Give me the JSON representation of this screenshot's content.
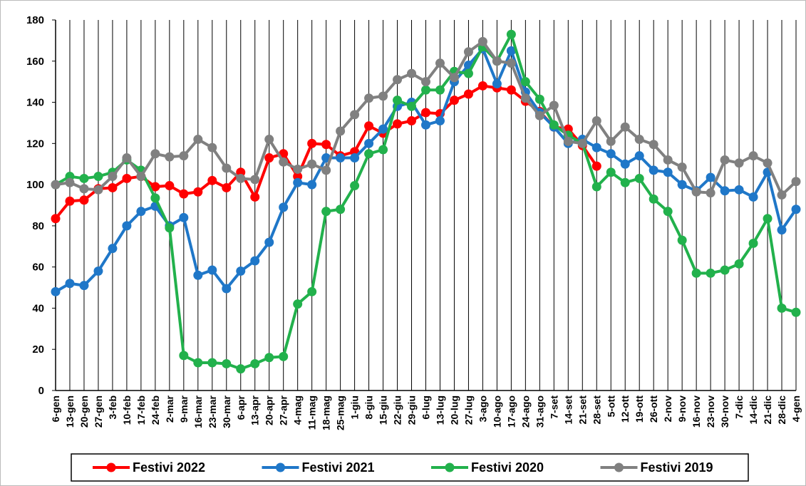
{
  "chart_data": {
    "type": "line",
    "categories": [
      "6-gen",
      "13-gen",
      "20-gen",
      "27-gen",
      "3-feb",
      "10-feb",
      "17-feb",
      "24-feb",
      "2-mar",
      "9-mar",
      "16-mar",
      "23-mar",
      "30-mar",
      "6-apr",
      "13-apr",
      "20-apr",
      "27-apr",
      "4-mag",
      "11-mag",
      "18-mag",
      "25-mag",
      "1-giu",
      "8-giu",
      "15-giu",
      "22-giu",
      "29-giu",
      "6-lug",
      "13-lug",
      "20-lug",
      "27-lug",
      "3-ago",
      "10-ago",
      "17-ago",
      "24-ago",
      "31-ago",
      "7-set",
      "14-set",
      "21-set",
      "28-set",
      "5-ott",
      "12-ott",
      "19-ott",
      "26-ott",
      "2-nov",
      "9-nov",
      "16-nov",
      "23-nov",
      "30-nov",
      "7-dic",
      "14-dic",
      "21-dic",
      "28-dic",
      "4-gen"
    ],
    "series": [
      {
        "name": "Festivi 2022",
        "color": "#ff0000",
        "values": [
          83.5,
          92,
          92.5,
          98,
          98.5,
          103,
          104,
          99,
          99.5,
          95.5,
          96.5,
          102,
          98.5,
          106,
          94,
          113,
          115,
          104,
          120,
          119.5,
          114,
          116,
          128.5,
          125,
          129.5,
          131,
          135,
          134.5,
          141,
          144,
          148,
          147,
          146,
          140.5,
          135.5,
          128,
          127,
          119,
          109,
          null,
          null,
          null,
          null,
          null,
          null,
          null,
          null,
          null,
          null,
          null,
          null,
          null,
          null
        ]
      },
      {
        "name": "Festivi 2021",
        "color": "#1f77c8",
        "values": [
          48,
          52,
          51,
          58,
          69,
          80,
          87,
          89.5,
          80,
          84,
          56,
          58.5,
          49.5,
          58,
          63,
          72,
          89,
          101,
          100,
          113,
          113,
          113,
          120,
          127,
          138,
          140,
          129,
          131,
          150,
          158,
          166,
          149,
          165,
          145,
          135,
          128,
          120,
          122,
          118,
          115,
          110,
          114,
          107,
          106,
          100,
          97,
          103.5,
          97,
          97.5,
          94,
          106,
          78,
          88
        ]
      },
      {
        "name": "Festivi 2020",
        "color": "#22b14c",
        "values": [
          100,
          104,
          103,
          104,
          106,
          112,
          107,
          93.5,
          79,
          17,
          13.5,
          13.5,
          13,
          10.5,
          13,
          16,
          16.5,
          42,
          48,
          87,
          88,
          99.5,
          115,
          117,
          141,
          138,
          146,
          146,
          155,
          154,
          167,
          160,
          173,
          150,
          141.5,
          129,
          124,
          120,
          99,
          106,
          101,
          103,
          93,
          87,
          73,
          57,
          57,
          58.5,
          61.5,
          71.5,
          83.5,
          40,
          38
        ]
      },
      {
        "name": "Festivi 2019",
        "color": "#808080",
        "values": [
          100,
          101,
          98,
          97.5,
          104,
          113,
          104,
          115,
          113.5,
          114,
          122,
          118,
          108,
          103,
          102.5,
          122,
          111,
          107.5,
          110,
          107,
          126,
          134,
          142,
          143,
          151,
          154,
          150,
          159,
          152,
          164.5,
          169.5,
          160,
          159,
          142,
          133.5,
          138.5,
          121,
          120,
          131,
          121,
          128,
          122,
          119.5,
          112,
          108.5,
          96.5,
          96,
          112,
          110.5,
          114,
          110.5,
          95,
          101.5
        ]
      }
    ],
    "ylim": [
      0,
      180
    ],
    "yticks": [
      0,
      20,
      40,
      60,
      80,
      100,
      120,
      140,
      160,
      180
    ],
    "grid": true,
    "legend": "bottom"
  }
}
